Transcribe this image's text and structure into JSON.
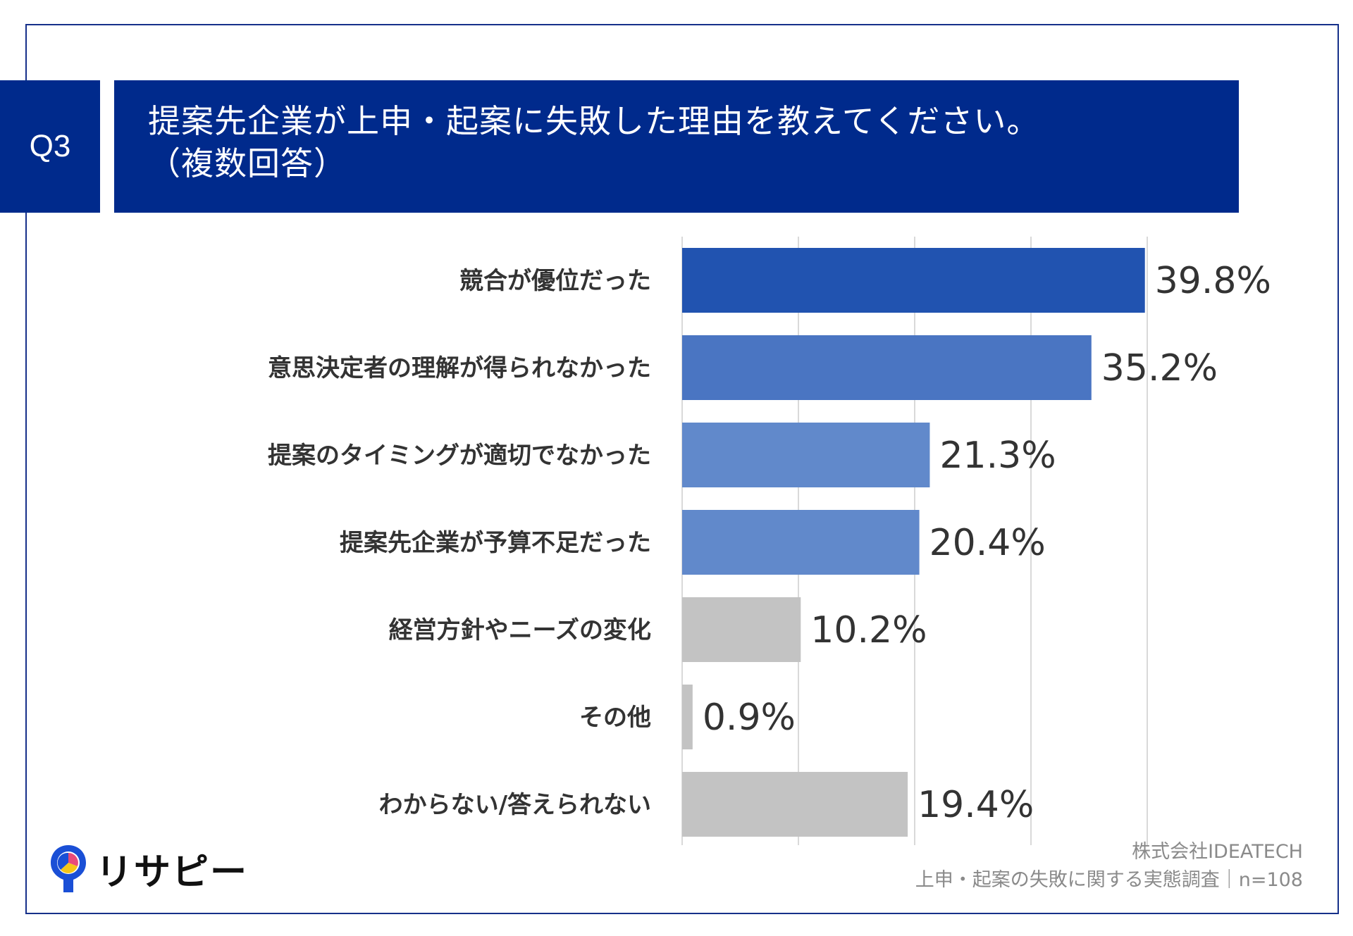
{
  "header": {
    "q_label": "Q3",
    "title_line1": "提案先企業が上申・起案に失敗した理由を教えてください。",
    "title_line2": "（複数回答）"
  },
  "chart_data": {
    "type": "bar",
    "orientation": "horizontal",
    "categories": [
      "競合が優位だった",
      "意思決定者の理解が得られなかった",
      "提案のタイミングが適切でなかった",
      "提案先企業が予算不足だった",
      "経営方針やニーズの変化",
      "その他",
      "わからない/答えられない"
    ],
    "values": [
      39.8,
      35.2,
      21.3,
      20.4,
      10.2,
      0.9,
      19.4
    ],
    "value_labels": [
      "39.8%",
      "35.2%",
      "21.3%",
      "20.4%",
      "10.2%",
      "0.9%",
      "19.4%"
    ],
    "bar_colors": [
      "#2153b0",
      "#4a75c2",
      "#6189cb",
      "#6189cb",
      "#c3c3c3",
      "#c3c3c3",
      "#c3c3c3"
    ],
    "xlim": [
      0,
      40
    ],
    "grid": true
  },
  "footer": {
    "company": "株式会社IDEATECH",
    "survey": "上申・起案の失敗に関する実態調査｜n=108"
  },
  "logo": {
    "text": "リサピー",
    "icon": "pin-icon",
    "colors": [
      "#1a4fd6",
      "#f5c518",
      "#e84a7a"
    ]
  },
  "colors": {
    "header_bg": "#002a8c",
    "frame": "#16308a",
    "grid": "#d9d9d9"
  }
}
